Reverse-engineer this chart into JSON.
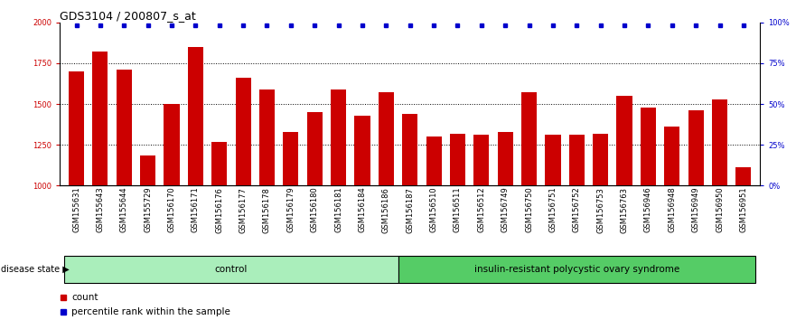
{
  "title": "GDS3104 / 200807_s_at",
  "categories": [
    "GSM155631",
    "GSM155643",
    "GSM155644",
    "GSM155729",
    "GSM156170",
    "GSM156171",
    "GSM156176",
    "GSM156177",
    "GSM156178",
    "GSM156179",
    "GSM156180",
    "GSM156181",
    "GSM156184",
    "GSM156186",
    "GSM156187",
    "GSM156510",
    "GSM156511",
    "GSM156512",
    "GSM156749",
    "GSM156750",
    "GSM156751",
    "GSM156752",
    "GSM156753",
    "GSM156763",
    "GSM156946",
    "GSM156948",
    "GSM156949",
    "GSM156950",
    "GSM156951"
  ],
  "values": [
    1700,
    1820,
    1710,
    1185,
    1500,
    1850,
    1270,
    1660,
    1590,
    1330,
    1450,
    1590,
    1430,
    1570,
    1440,
    1300,
    1320,
    1310,
    1330,
    1570,
    1310,
    1310,
    1320,
    1550,
    1480,
    1360,
    1460,
    1530,
    1110
  ],
  "n_control": 14,
  "n_disease": 15,
  "bar_color": "#cc0000",
  "percentile_color": "#0000cc",
  "control_color": "#aaeebb",
  "disease_color": "#55cc66",
  "control_label": "control",
  "disease_label": "insulin-resistant polycystic ovary syndrome",
  "disease_state_label": "disease state",
  "legend_count": "count",
  "legend_percentile": "percentile rank within the sample",
  "ylim_left": [
    1000,
    2000
  ],
  "ylim_right": [
    0,
    100
  ],
  "yticks_left": [
    1000,
    1250,
    1500,
    1750,
    2000
  ],
  "yticks_right": [
    0,
    25,
    50,
    75,
    100
  ],
  "hline_values": [
    1250,
    1500,
    1750
  ],
  "background_color": "#ffffff",
  "title_fontsize": 9,
  "tick_fontsize": 6,
  "label_fontsize": 7.5
}
